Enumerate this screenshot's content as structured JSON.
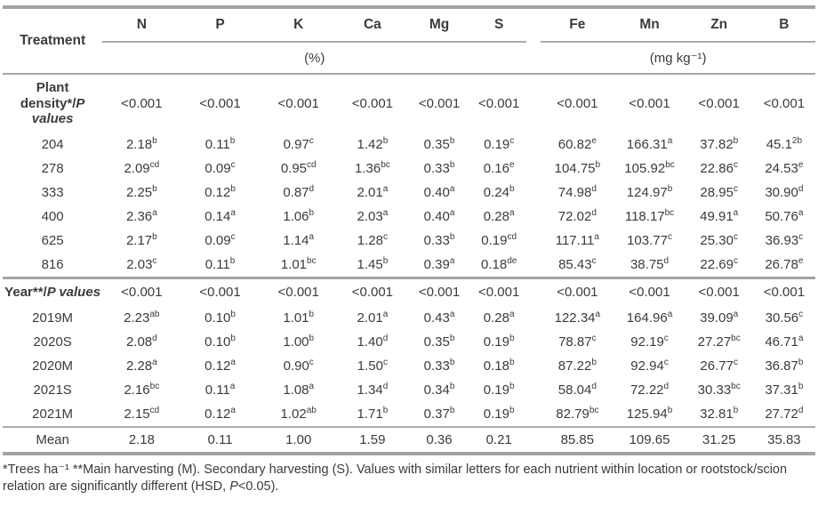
{
  "table": {
    "corner_label": "Treatment",
    "element_headers": [
      "N",
      "P",
      "K",
      "Ca",
      "Mg",
      "S",
      "Fe",
      "Mn",
      "Zn",
      "B"
    ],
    "unit_groups": [
      {
        "label": "(%)",
        "span": 6
      },
      {
        "label": "(mg kg⁻¹)",
        "span": 4
      }
    ],
    "sections": [
      {
        "header": {
          "pre": "Plant density*/",
          "italic": "P values"
        },
        "p_values": [
          "<0.001",
          "<0.001",
          "<0.001",
          "<0.001",
          "<0.001",
          "<0.001",
          "<0.001",
          "<0.001",
          "<0.001",
          "<0.001"
        ],
        "rows": [
          {
            "label": "204",
            "cells": [
              [
                "2.18",
                "b"
              ],
              [
                "0.11",
                "b"
              ],
              [
                "0.97",
                "c"
              ],
              [
                "1.42",
                "b"
              ],
              [
                "0.35",
                "b"
              ],
              [
                "0.19",
                "c"
              ],
              [
                "60.82",
                "e"
              ],
              [
                "166.31",
                "a"
              ],
              [
                "37.82",
                "b"
              ],
              [
                "45.1",
                "2b"
              ]
            ]
          },
          {
            "label": "278",
            "cells": [
              [
                "2.09",
                "cd"
              ],
              [
                "0.09",
                "c"
              ],
              [
                "0.95",
                "cd"
              ],
              [
                "1.36",
                "bc"
              ],
              [
                "0.33",
                "b"
              ],
              [
                "0.16",
                "e"
              ],
              [
                "104.75",
                "b"
              ],
              [
                "105.92",
                "bc"
              ],
              [
                "22.86",
                "c"
              ],
              [
                "24.53",
                "e"
              ]
            ]
          },
          {
            "label": "333",
            "cells": [
              [
                "2.25",
                "b"
              ],
              [
                "0.12",
                "b"
              ],
              [
                "0.87",
                "d"
              ],
              [
                "2.01",
                "a"
              ],
              [
                "0.40",
                "a"
              ],
              [
                "0.24",
                "b"
              ],
              [
                "74.98",
                "d"
              ],
              [
                "124.97",
                "b"
              ],
              [
                "28.95",
                "c"
              ],
              [
                "30.90",
                "d"
              ]
            ]
          },
          {
            "label": "400",
            "cells": [
              [
                "2.36",
                "a"
              ],
              [
                "0.14",
                "a"
              ],
              [
                "1.06",
                "b"
              ],
              [
                "2.03",
                "a"
              ],
              [
                "0.40",
                "a"
              ],
              [
                "0.28",
                "a"
              ],
              [
                "72.02",
                "d"
              ],
              [
                "118.17",
                "bc"
              ],
              [
                "49.91",
                "a"
              ],
              [
                "50.76",
                "a"
              ]
            ]
          },
          {
            "label": "625",
            "cells": [
              [
                "2.17",
                "b"
              ],
              [
                "0.09",
                "c"
              ],
              [
                "1.14",
                "a"
              ],
              [
                "1.28",
                "c"
              ],
              [
                "0.33",
                "b"
              ],
              [
                "0.19",
                "cd"
              ],
              [
                "117.11",
                "a"
              ],
              [
                "103.77",
                "c"
              ],
              [
                "25.30",
                "c"
              ],
              [
                "36.93",
                "c"
              ]
            ]
          },
          {
            "label": "816",
            "cells": [
              [
                "2.03",
                "c"
              ],
              [
                "0.11",
                "b"
              ],
              [
                "1.01",
                "bc"
              ],
              [
                "1.45",
                "b"
              ],
              [
                "0.39",
                "a"
              ],
              [
                "0.18",
                "de"
              ],
              [
                "85.43",
                "c"
              ],
              [
                "38.75",
                "d"
              ],
              [
                "22.69",
                "c"
              ],
              [
                "26.78",
                "e"
              ]
            ]
          }
        ]
      },
      {
        "header": {
          "pre": "Year**/",
          "italic": "P values"
        },
        "p_values": [
          "<0.001",
          "<0.001",
          "<0.001",
          "<0.001",
          "<0.001",
          "<0.001",
          "<0.001",
          "<0.001",
          "<0.001",
          "<0.001"
        ],
        "rows": [
          {
            "label": "2019M",
            "cells": [
              [
                "2.23",
                "ab"
              ],
              [
                "0.10",
                "b"
              ],
              [
                "1.01",
                "b"
              ],
              [
                "2.01",
                "a"
              ],
              [
                "0.43",
                "a"
              ],
              [
                "0.28",
                "a"
              ],
              [
                "122.34",
                "a"
              ],
              [
                "164.96",
                "a"
              ],
              [
                "39.09",
                "a"
              ],
              [
                "30.56",
                "c"
              ]
            ]
          },
          {
            "label": "2020S",
            "cells": [
              [
                "2.08",
                "d"
              ],
              [
                "0.10",
                "b"
              ],
              [
                "1.00",
                "b"
              ],
              [
                "1.40",
                "d"
              ],
              [
                "0.35",
                "b"
              ],
              [
                "0.19",
                "b"
              ],
              [
                "78.87",
                "c"
              ],
              [
                "92.19",
                "c"
              ],
              [
                "27.27",
                "bc"
              ],
              [
                "46.71",
                "a"
              ]
            ]
          },
          {
            "label": "2020M",
            "cells": [
              [
                "2.28",
                "a"
              ],
              [
                "0.12",
                "a"
              ],
              [
                "0.90",
                "c"
              ],
              [
                "1.50",
                "c"
              ],
              [
                "0.33",
                "b"
              ],
              [
                "0.18",
                "b"
              ],
              [
                "87.22",
                "b"
              ],
              [
                "92.94",
                "c"
              ],
              [
                "26.77",
                "c"
              ],
              [
                "36.87",
                "b"
              ]
            ]
          },
          {
            "label": "2021S",
            "cells": [
              [
                "2.16",
                "bc"
              ],
              [
                "0.11",
                "a"
              ],
              [
                "1.08",
                "a"
              ],
              [
                "1.34",
                "d"
              ],
              [
                "0.34",
                "b"
              ],
              [
                "0.19",
                "b"
              ],
              [
                "58.04",
                "d"
              ],
              [
                "72.22",
                "d"
              ],
              [
                "30.33",
                "bc"
              ],
              [
                "37.31",
                "b"
              ]
            ]
          },
          {
            "label": "2021M",
            "cells": [
              [
                "2.15",
                "cd"
              ],
              [
                "0.12",
                "a"
              ],
              [
                "1.02",
                "ab"
              ],
              [
                "1.71",
                "b"
              ],
              [
                "0.37",
                "b"
              ],
              [
                "0.19",
                "b"
              ],
              [
                "82.79",
                "bc"
              ],
              [
                "125.94",
                "b"
              ],
              [
                "32.81",
                "b"
              ],
              [
                "27.72",
                "d"
              ]
            ]
          }
        ]
      }
    ],
    "mean_row": {
      "label": "Mean",
      "cells": [
        [
          "2.18",
          ""
        ],
        [
          "0.11",
          ""
        ],
        [
          "1.00",
          ""
        ],
        [
          "1.59",
          ""
        ],
        [
          "0.36",
          ""
        ],
        [
          "0.21",
          ""
        ],
        [
          "85.85",
          ""
        ],
        [
          "109.65",
          ""
        ],
        [
          "31.25",
          ""
        ],
        [
          "35.83",
          ""
        ]
      ]
    }
  },
  "footnote": {
    "text1": "*Trees ha⁻¹ **Main harvesting (M). Secondary harvesting (S). Values with similar letters for each nutrient within location or rootstock/scion relation are significantly different (HSD, ",
    "italic": "P",
    "text2": "<0.05)."
  }
}
